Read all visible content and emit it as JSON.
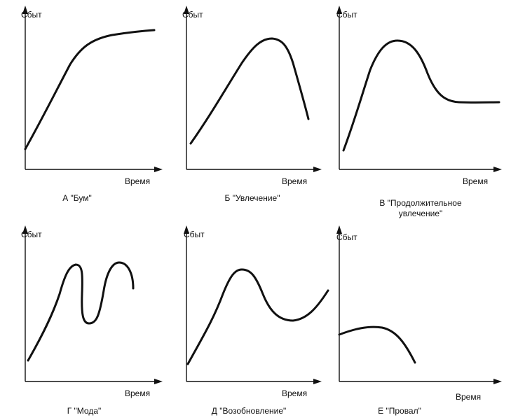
{
  "axis_labels": {
    "y": "Сбыт",
    "x": "Время"
  },
  "panels": [
    {
      "caption": "А \"Бум\""
    },
    {
      "caption": "Б \"Увлечение\""
    },
    {
      "caption_line1": "В \"Продолжительное",
      "caption_line2": "увлечение\""
    },
    {
      "caption": "Г \"Мода\""
    },
    {
      "caption": "Д \"Возобновление\""
    },
    {
      "caption": "Е \"Провал\""
    }
  ]
}
